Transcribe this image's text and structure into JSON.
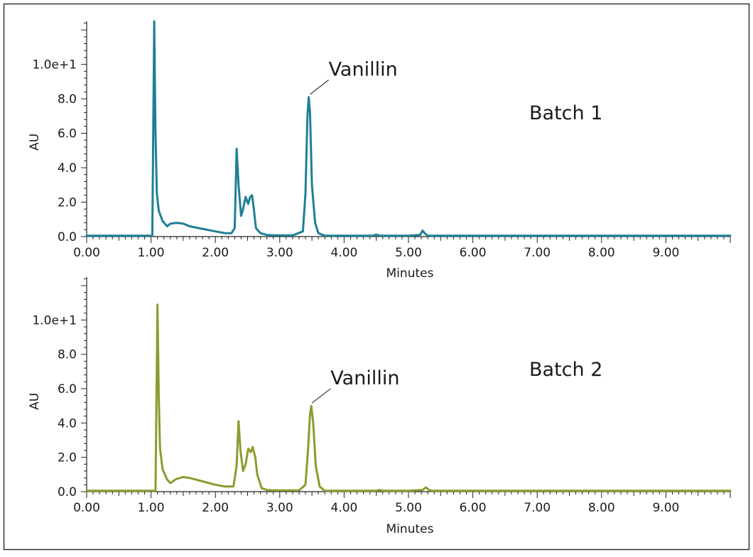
{
  "chart_data": [
    {
      "type": "line",
      "batch_label": "Batch 1",
      "xlabel": "Minutes",
      "ylabel": "AU",
      "xlim": [
        0,
        10
      ],
      "ylim": [
        0,
        12.5
      ],
      "x_ticks": [
        0,
        1,
        2,
        3,
        4,
        5,
        6,
        7,
        8,
        9
      ],
      "x_tick_labels": [
        "0.00",
        "1.00",
        "2.00",
        "3.00",
        "4.00",
        "5.00",
        "6.00",
        "7.00",
        "8.00",
        "9.00"
      ],
      "y_ticks": [
        0,
        2,
        4,
        6,
        8,
        10
      ],
      "y_tick_labels": [
        "0.0",
        "2.0",
        "4.0",
        "6.0",
        "8.0",
        "1.0e+1"
      ],
      "annotation": {
        "text": "Vanillin",
        "x": 3.45,
        "y": 8.1
      },
      "color": "#1f7f95",
      "series": [
        {
          "x": [
            0,
            0.9,
            1.02,
            1.05,
            1.07,
            1.09,
            1.12,
            1.18,
            1.25,
            1.3,
            1.4,
            1.5,
            1.6,
            1.8,
            2.0,
            2.15,
            2.25,
            2.3,
            2.33,
            2.36,
            2.4,
            2.43,
            2.47,
            2.51,
            2.54,
            2.57,
            2.6,
            2.63,
            2.7,
            2.8,
            2.9,
            3.0,
            3.2,
            3.36,
            3.4,
            3.43,
            3.45,
            3.47,
            3.5,
            3.55,
            3.6,
            3.7,
            4.0,
            4.45,
            4.5,
            4.55,
            5.0,
            5.18,
            5.22,
            5.25,
            5.3,
            6.0,
            7.0,
            8.0,
            9.0,
            10.0
          ],
          "y": [
            0.05,
            0.05,
            0.05,
            12.5,
            6.0,
            2.5,
            1.5,
            0.9,
            0.6,
            0.75,
            0.8,
            0.75,
            0.6,
            0.45,
            0.3,
            0.2,
            0.2,
            0.5,
            5.1,
            3.0,
            1.2,
            1.6,
            2.3,
            1.9,
            2.3,
            2.4,
            1.5,
            0.5,
            0.2,
            0.1,
            0.07,
            0.07,
            0.07,
            0.3,
            2.5,
            7.0,
            8.1,
            7.2,
            3.0,
            0.8,
            0.2,
            0.05,
            0.05,
            0.05,
            0.12,
            0.05,
            0.05,
            0.1,
            0.35,
            0.2,
            0.05,
            0.05,
            0.05,
            0.05,
            0.05,
            0.05
          ]
        }
      ]
    },
    {
      "type": "line",
      "batch_label": "Batch 2",
      "xlabel": "Minutes",
      "ylabel": "AU",
      "xlim": [
        0,
        10
      ],
      "ylim": [
        0,
        12.5
      ],
      "x_ticks": [
        0,
        1,
        2,
        3,
        4,
        5,
        6,
        7,
        8,
        9
      ],
      "x_tick_labels": [
        "0.00",
        "1.00",
        "2.00",
        "3.00",
        "4.00",
        "5.00",
        "6.00",
        "7.00",
        "8.00",
        "9.00"
      ],
      "y_ticks": [
        0,
        2,
        4,
        6,
        8,
        10
      ],
      "y_tick_labels": [
        "0.0",
        "2.0",
        "4.0",
        "6.0",
        "8.0",
        "1.0e+1"
      ],
      "annotation": {
        "text": "Vanillin",
        "x": 3.48,
        "y": 5.0
      },
      "color": "#8e9a2e",
      "series": [
        {
          "x": [
            0,
            0.95,
            1.07,
            1.1,
            1.12,
            1.14,
            1.18,
            1.25,
            1.3,
            1.4,
            1.5,
            1.6,
            1.8,
            2.0,
            2.15,
            2.28,
            2.33,
            2.36,
            2.39,
            2.43,
            2.47,
            2.51,
            2.55,
            2.58,
            2.62,
            2.65,
            2.72,
            2.8,
            2.9,
            3.0,
            3.3,
            3.4,
            3.44,
            3.47,
            3.49,
            3.52,
            3.56,
            3.62,
            3.7,
            4.0,
            4.5,
            4.55,
            4.6,
            5.0,
            5.22,
            5.27,
            5.3,
            5.35,
            6.0,
            7.0,
            8.0,
            9.0,
            10.0
          ],
          "y": [
            0.05,
            0.05,
            0.05,
            10.9,
            5.5,
            2.5,
            1.3,
            0.7,
            0.5,
            0.75,
            0.85,
            0.8,
            0.6,
            0.4,
            0.3,
            0.3,
            1.5,
            4.1,
            2.4,
            1.2,
            1.6,
            2.5,
            2.3,
            2.6,
            2.0,
            1.0,
            0.2,
            0.1,
            0.07,
            0.07,
            0.07,
            0.4,
            2.5,
            4.5,
            5.0,
            4.0,
            1.5,
            0.3,
            0.05,
            0.05,
            0.05,
            0.1,
            0.05,
            0.05,
            0.1,
            0.25,
            0.15,
            0.05,
            0.05,
            0.05,
            0.05,
            0.05,
            0.05
          ]
        }
      ]
    }
  ]
}
